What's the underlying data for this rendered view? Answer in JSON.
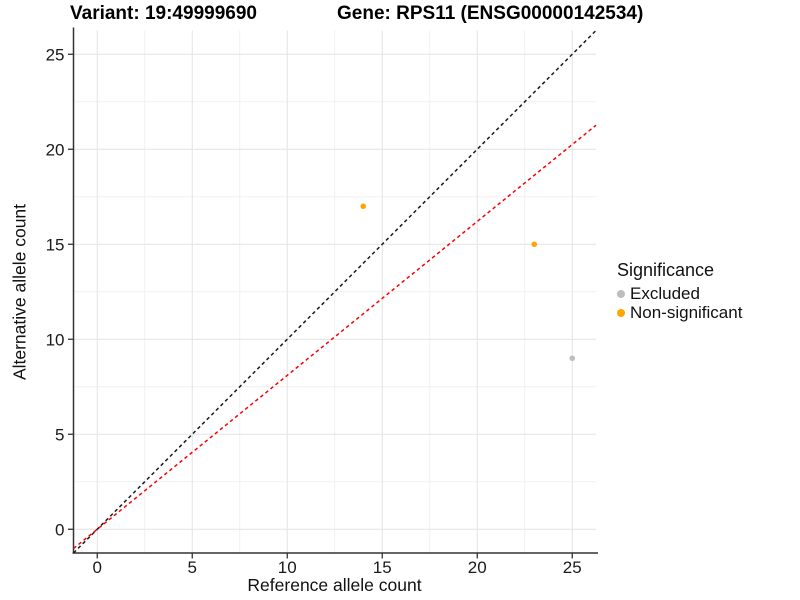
{
  "chart_data": {
    "type": "scatter",
    "title_left": "Variant: 19:49999690",
    "title_right": "Gene: RPS11 (ENSG00000142534)",
    "xlabel": "Reference allele count",
    "ylabel": "Alternative allele count",
    "xlim": [
      -1.25,
      26.25
    ],
    "ylim": [
      -1.25,
      26.25
    ],
    "xticks": [
      0,
      5,
      10,
      15,
      20,
      25
    ],
    "yticks": [
      0,
      5,
      10,
      15,
      20,
      25
    ],
    "minor_xticks": [
      2.5,
      7.5,
      12.5,
      17.5,
      22.5
    ],
    "minor_yticks": [
      2.5,
      7.5,
      12.5,
      17.5,
      22.5
    ],
    "grid": "major+minor",
    "points": [
      {
        "x": 14,
        "y": 17,
        "group": "Non-significant"
      },
      {
        "x": 23,
        "y": 15,
        "group": "Non-significant"
      },
      {
        "x": 25,
        "y": 9,
        "group": "Excluded"
      }
    ],
    "group_colors": {
      "Excluded": "#BEBEBE",
      "Non-significant": "#FFA500"
    },
    "lines": [
      {
        "name": "identity-line",
        "slope": 1.0,
        "intercept": 0,
        "color": "#1A1A1A",
        "style": "dashed"
      },
      {
        "name": "ratio-line",
        "slope": 0.81,
        "intercept": 0,
        "color": "#FA0000",
        "style": "dashed"
      }
    ],
    "legend": {
      "title": "Significance",
      "position": "right",
      "items": [
        {
          "label": "Excluded",
          "color": "#BEBEBE"
        },
        {
          "label": "Non-significant",
          "color": "#FFA500"
        }
      ]
    },
    "style_colors": {
      "grid_major": "#E4E4E4",
      "grid_minor": "#F1F1F1",
      "axis_line": "#333333",
      "tick_label": "#1a1a1a"
    }
  }
}
